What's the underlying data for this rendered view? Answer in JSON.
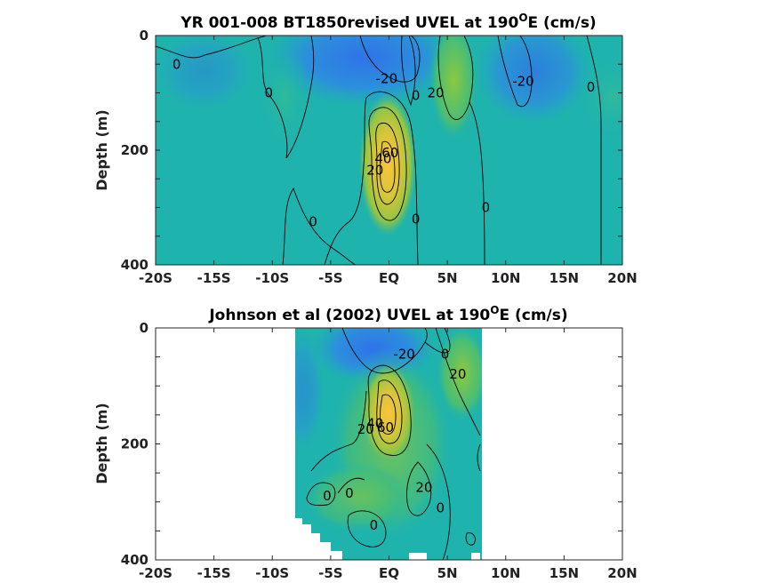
{
  "chart_data": [
    {
      "type": "heatmap",
      "title_main": "YR 001-008 BT1850revised UVEL at 190",
      "title_sup": "O",
      "title_tail": "E (cm/s)",
      "ylabel": "Depth (m)",
      "x_ticks": [
        "-20S",
        "-15S",
        "-10S",
        "-5S",
        "EQ",
        "5N",
        "10N",
        "15N",
        "20N"
      ],
      "x_tick_values": [
        -20,
        -15,
        -10,
        -5,
        0,
        5,
        10,
        15,
        20
      ],
      "y_ticks": [
        "0",
        "200",
        "400"
      ],
      "y_tick_values": [
        0,
        200,
        400
      ],
      "xlim": [
        -20,
        20
      ],
      "ylim": [
        0,
        400
      ],
      "y_reversed": true,
      "data_extent_x": [
        -20,
        20
      ],
      "colormap": "parula",
      "clim": [
        -40,
        80
      ],
      "features": [
        {
          "kind": "EUC core",
          "x": 0,
          "y": 195,
          "value": 75
        },
        {
          "kind": "westward surface flow",
          "x": -3,
          "y": 60,
          "value": -25
        },
        {
          "kind": "NECC",
          "x": 5.5,
          "y": 85,
          "value": 25
        },
        {
          "kind": "NEC",
          "x": 10,
          "y": 70,
          "value": -15
        }
      ],
      "contour_labels": [
        {
          "text": "0",
          "x": -18.2,
          "y": 50
        },
        {
          "text": "0",
          "x": -10.3,
          "y": 100
        },
        {
          "text": "-20",
          "x": -0.2,
          "y": 75
        },
        {
          "text": "0",
          "x": 2.3,
          "y": 105
        },
        {
          "text": "20",
          "x": 4.0,
          "y": 100
        },
        {
          "text": "-20",
          "x": 11.5,
          "y": 80
        },
        {
          "text": "0",
          "x": 17.3,
          "y": 90
        },
        {
          "text": "60",
          "x": 0.1,
          "y": 205
        },
        {
          "text": "20",
          "x": -1.2,
          "y": 235
        },
        {
          "text": "40",
          "x": -0.5,
          "y": 215
        },
        {
          "text": "0",
          "x": -6.5,
          "y": 325
        },
        {
          "text": "0",
          "x": 2.3,
          "y": 320
        },
        {
          "text": "0",
          "x": 8.3,
          "y": 300
        }
      ]
    },
    {
      "type": "heatmap",
      "title_main": "Johnson et al (2002) UVEL at 190",
      "title_sup": "O",
      "title_tail": "E (cm/s)",
      "ylabel": "Depth (m)",
      "x_ticks": [
        "-20S",
        "-15S",
        "-10S",
        "-5S",
        "EQ",
        "5N",
        "10N",
        "15N",
        "20N"
      ],
      "x_tick_values": [
        -20,
        -15,
        -10,
        -5,
        0,
        5,
        10,
        15,
        20
      ],
      "y_ticks": [
        "0",
        "200",
        "400"
      ],
      "y_tick_values": [
        0,
        200,
        400
      ],
      "xlim": [
        -20,
        20
      ],
      "ylim": [
        0,
        400
      ],
      "y_reversed": true,
      "data_extent_x": [
        -8,
        8
      ],
      "colormap": "parula",
      "clim": [
        -40,
        80
      ],
      "features": [
        {
          "kind": "EUC core",
          "x": 0,
          "y": 150,
          "value": 70
        },
        {
          "kind": "westward surface flow",
          "x": -2,
          "y": 40,
          "value": -25
        },
        {
          "kind": "NECC",
          "x": 5.5,
          "y": 70,
          "value": 20
        }
      ],
      "contour_labels": [
        {
          "text": "-20",
          "x": 1.3,
          "y": 45
        },
        {
          "text": "0",
          "x": 4.8,
          "y": 45
        },
        {
          "text": "20",
          "x": 5.9,
          "y": 80
        },
        {
          "text": "20",
          "x": -2.0,
          "y": 175
        },
        {
          "text": "40",
          "x": -1.2,
          "y": 165
        },
        {
          "text": "60",
          "x": -0.3,
          "y": 172
        },
        {
          "text": "0",
          "x": -5.3,
          "y": 290
        },
        {
          "text": "0",
          "x": -3.4,
          "y": 285
        },
        {
          "text": "20",
          "x": 3.0,
          "y": 275
        },
        {
          "text": "0",
          "x": 4.4,
          "y": 310
        },
        {
          "text": "0",
          "x": -1.3,
          "y": 340
        }
      ]
    }
  ]
}
